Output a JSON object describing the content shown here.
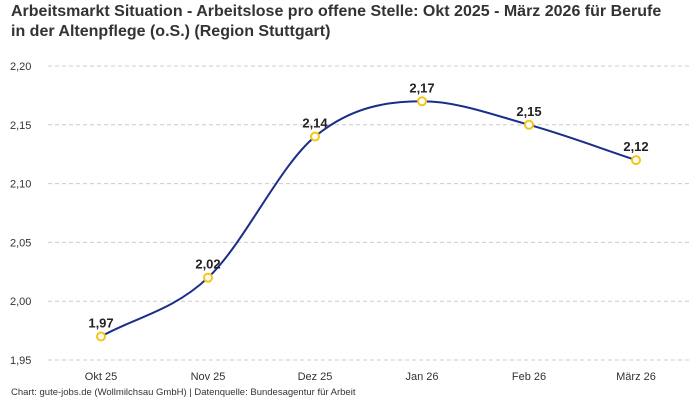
{
  "chart_data": {
    "type": "line",
    "title": "Arbeitsmarkt Situation - Arbeitslose pro offene Stelle: Okt 2025 - März 2026 für Berufe in der Altenpflege (o.S.) (Region Stuttgart)",
    "categories": [
      "Okt 25",
      "Nov 25",
      "Dez 25",
      "Jan 26",
      "Feb 26",
      "März 26"
    ],
    "series": [
      {
        "values": [
          1.97,
          2.02,
          2.14,
          2.17,
          2.15,
          2.12
        ],
        "labels": [
          "1,97",
          "2,02",
          "2,14",
          "2,17",
          "2,15",
          "2,12"
        ]
      }
    ],
    "ylim": [
      1.95,
      2.2
    ],
    "yticks": [
      1.95,
      2.0,
      2.05,
      2.1,
      2.15,
      2.2
    ],
    "ytick_labels": [
      "1,95",
      "2,00",
      "2,05",
      "2,10",
      "2,15",
      "2,20"
    ],
    "xlabel": "",
    "ylabel": "",
    "grid": true,
    "line_color": "#1a2e8a",
    "marker_color": "#f5c518"
  },
  "footer": "Chart: gute-jobs.de (Wollmilchsau GmbH) | Datenquelle: Bundesagentur für Arbeit"
}
